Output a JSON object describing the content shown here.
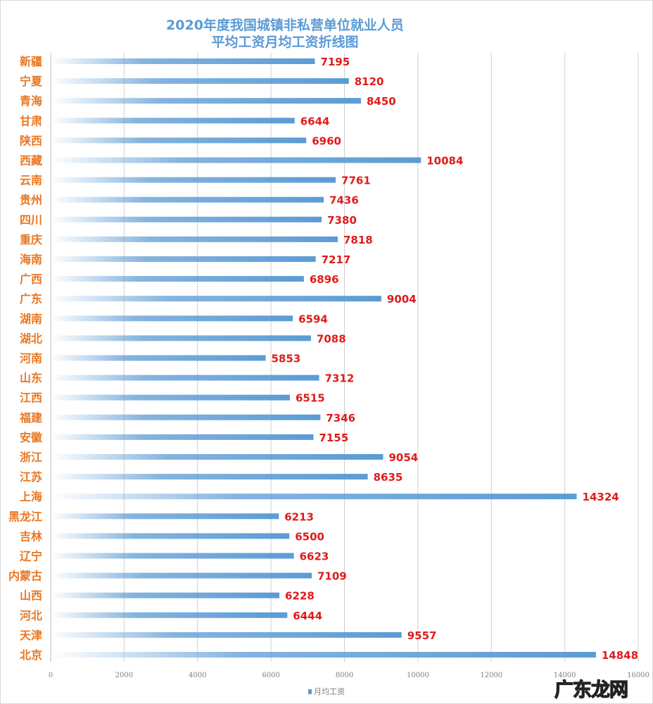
{
  "chart_data": {
    "type": "bar",
    "orientation": "horizontal",
    "title": "2020年度我国城镇非私营单位就业人员",
    "subtitle": "平均工资月均工资折线图",
    "categories": [
      "新疆",
      "宁夏",
      "青海",
      "甘肃",
      "陕西",
      "西藏",
      "云南",
      "贵州",
      "四川",
      "重庆",
      "海南",
      "广西",
      "广东",
      "湖南",
      "湖北",
      "河南",
      "山东",
      "江西",
      "福建",
      "安徽",
      "浙江",
      "江苏",
      "上海",
      "黑龙江",
      "吉林",
      "辽宁",
      "内蒙古",
      "山西",
      "河北",
      "天津",
      "北京"
    ],
    "series": [
      {
        "name": "月均工资",
        "values": [
          7195,
          8120,
          8450,
          6644,
          6960,
          10084,
          7761,
          7436,
          7380,
          7818,
          7217,
          6896,
          9004,
          6594,
          7088,
          5853,
          7312,
          6515,
          7346,
          7155,
          9054,
          8635,
          14324,
          6213,
          6500,
          6623,
          7109,
          6228,
          6444,
          9557,
          14848
        ]
      }
    ],
    "xlim": [
      0,
      16000
    ],
    "xticks": [
      "0",
      "2000",
      "4000",
      "6000",
      "8000",
      "10000",
      "12000",
      "14000",
      "16000"
    ],
    "grid": true,
    "legend": "bottom",
    "colors": {
      "bar": "#5b9bd5",
      "category_label": "#e87722",
      "value_label": "#e01b1b",
      "title": "#5b9bd5"
    }
  },
  "watermark": "广东龙网"
}
